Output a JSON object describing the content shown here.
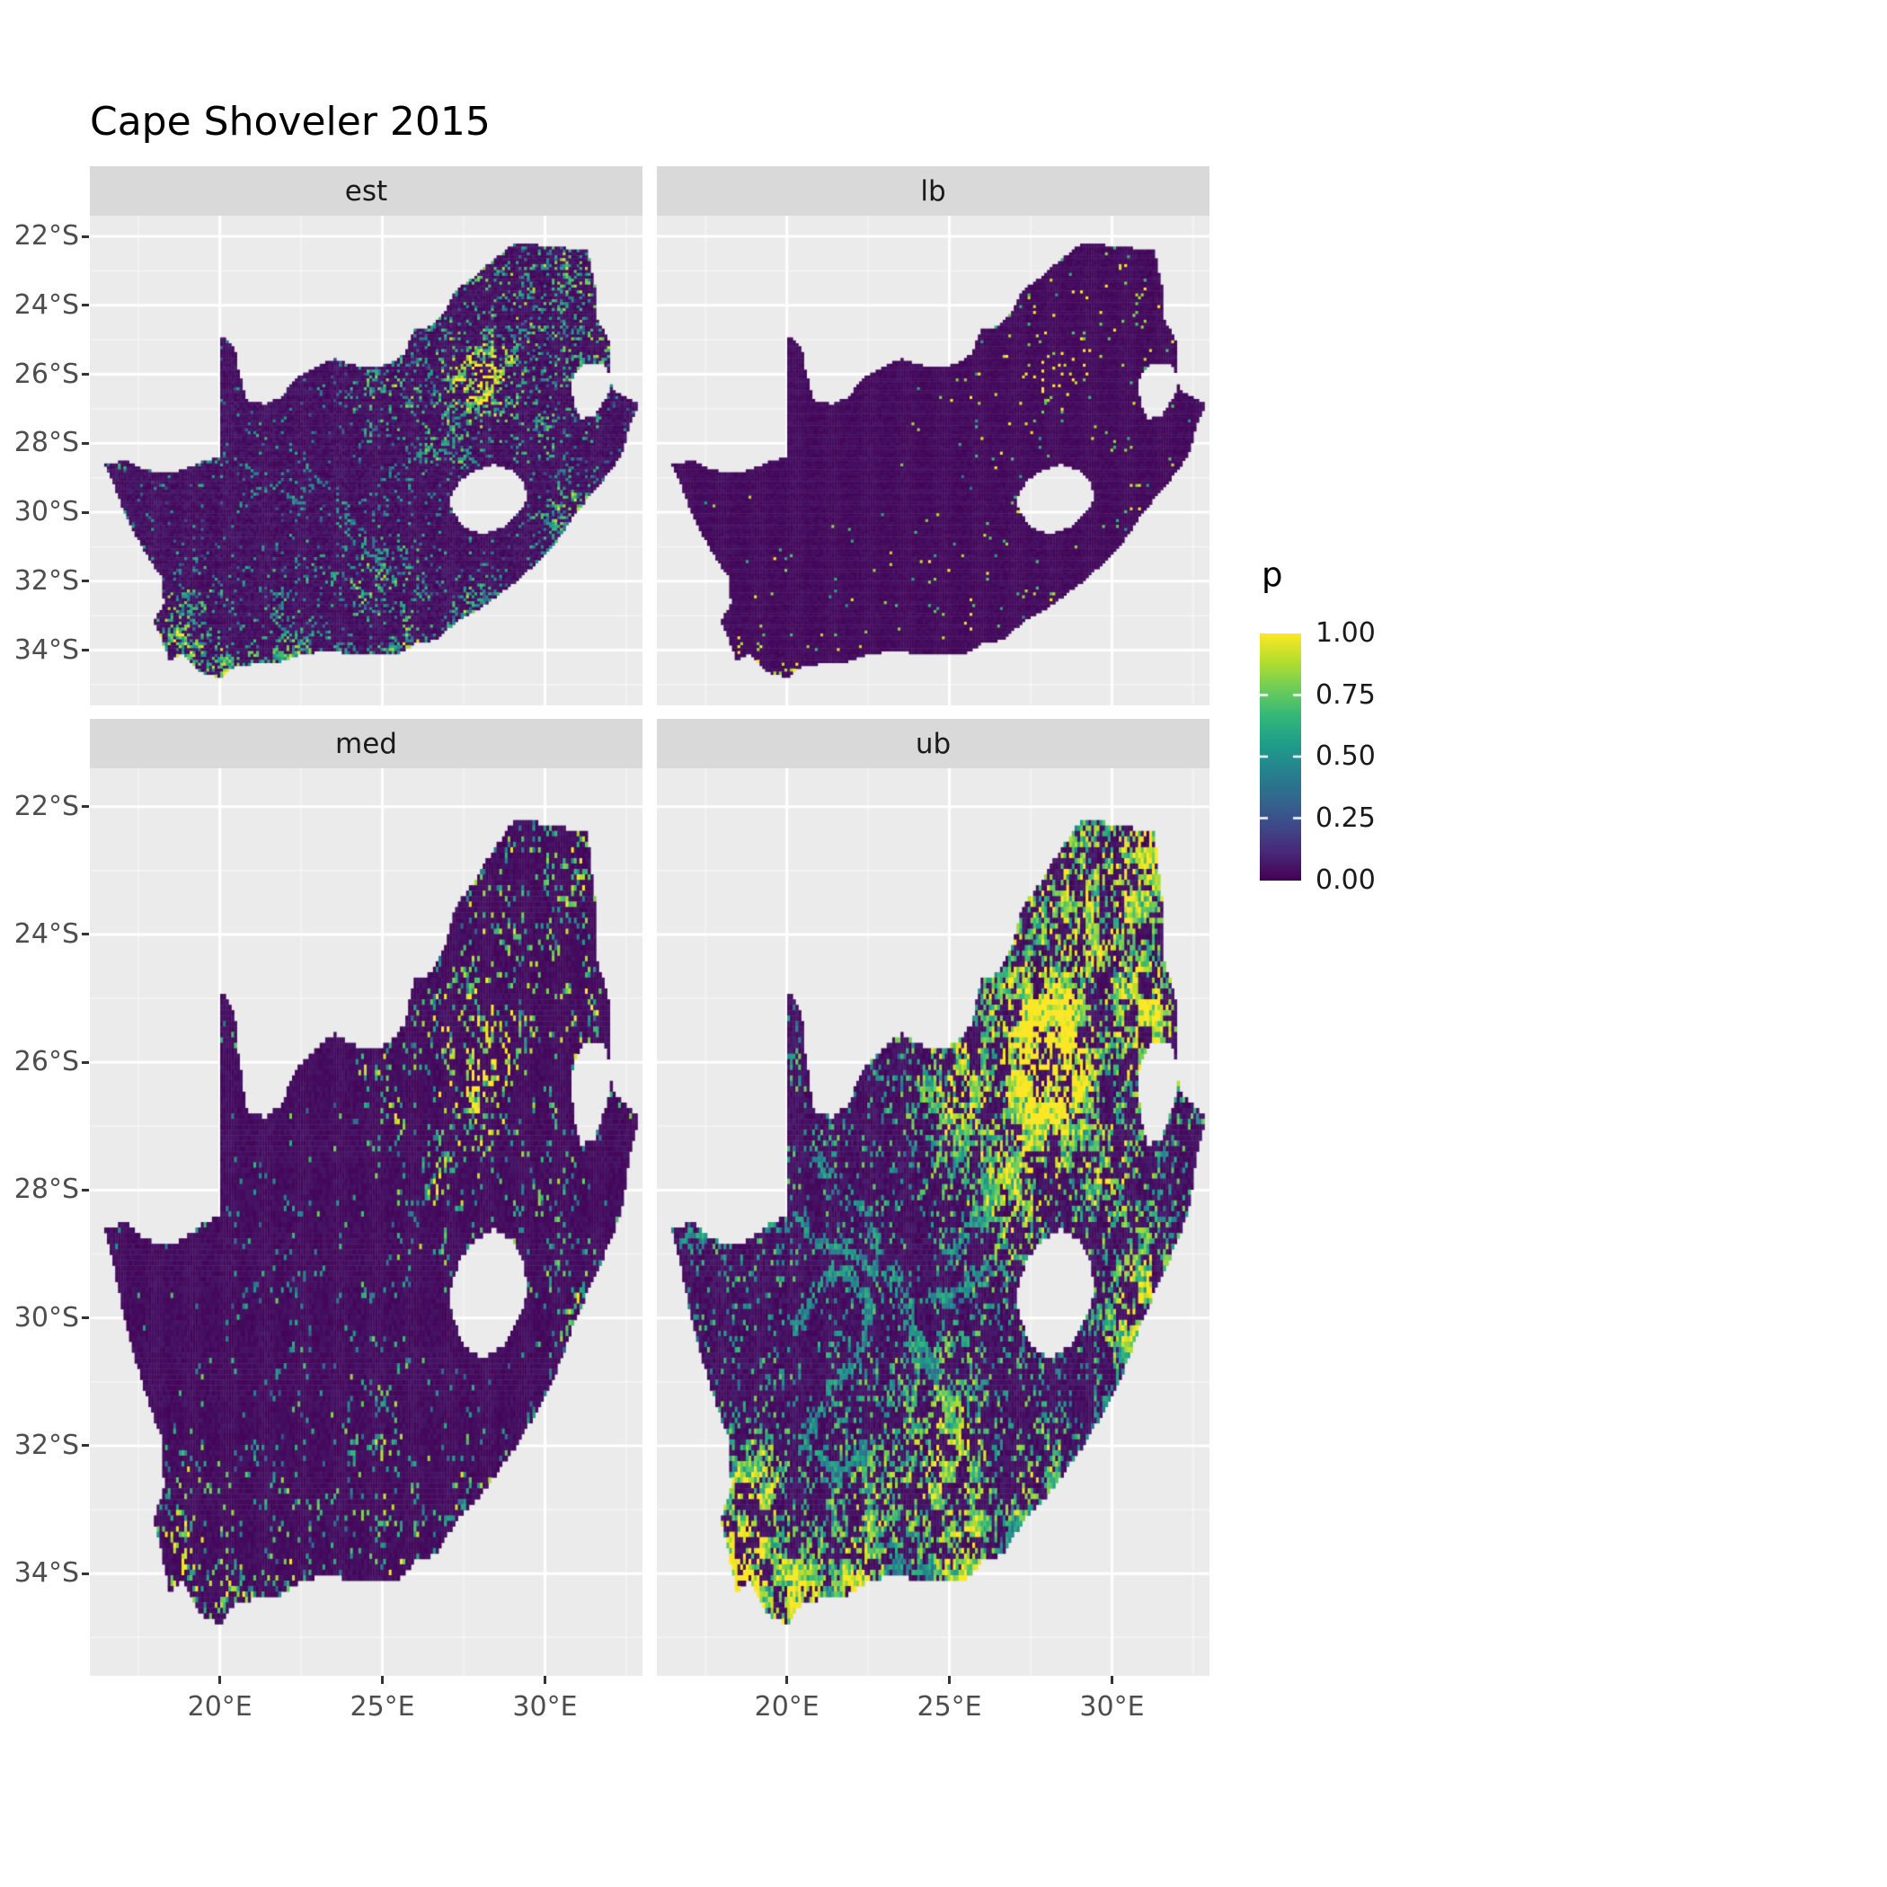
{
  "title": "Cape Shoveler 2015",
  "chart_data": {
    "type": "heatmap",
    "subtype": "faceted-raster-map",
    "region": "South Africa",
    "facets": [
      "est",
      "lb",
      "med",
      "ub"
    ],
    "x_axis": {
      "ticks": [
        20,
        25,
        30
      ],
      "labels": [
        "20°E",
        "25°E",
        "30°E"
      ],
      "range": [
        16.0,
        33.0
      ]
    },
    "y_axis": {
      "ticks": [
        -22,
        -24,
        -26,
        -28,
        -30,
        -32,
        -34
      ],
      "labels": [
        "22°S",
        "24°S",
        "26°S",
        "28°S",
        "30°S",
        "32°S",
        "34°S"
      ],
      "range": [
        -21.4,
        -35.6
      ]
    },
    "legend": {
      "title": "p",
      "tick_values": [
        1.0,
        0.75,
        0.5,
        0.25,
        0.0
      ],
      "tick_labels": [
        "1.00",
        "0.75",
        "0.50",
        "0.25",
        "0.00"
      ],
      "range": [
        0,
        1
      ]
    },
    "palette": {
      "name": "viridis",
      "stops": [
        [
          0,
          "#440154"
        ],
        [
          0.111,
          "#482878"
        ],
        [
          0.222,
          "#3E4A89"
        ],
        [
          0.333,
          "#31688E"
        ],
        [
          0.444,
          "#26828E"
        ],
        [
          0.556,
          "#1F9E89"
        ],
        [
          0.667,
          "#35B779"
        ],
        [
          0.778,
          "#6DCD59"
        ],
        [
          0.889,
          "#B4DE2C"
        ],
        [
          1,
          "#FDE725"
        ]
      ]
    },
    "colors": {
      "panel_bg": "#EBEBEB",
      "strip_bg": "#D9D9D9",
      "grid_major": "#FFFFFF",
      "axis_text": "#4D4D4D",
      "text": "#1A1A1A",
      "background": "#FFFFFF"
    },
    "cell_size_deg": 0.085,
    "map_outline": [
      [
        16.45,
        -28.6
      ],
      [
        17.1,
        -28.5
      ],
      [
        17.7,
        -28.77
      ],
      [
        18.4,
        -28.88
      ],
      [
        19.0,
        -28.72
      ],
      [
        19.55,
        -28.5
      ],
      [
        20.0,
        -28.4
      ],
      [
        20.0,
        -24.85
      ],
      [
        20.45,
        -25.2
      ],
      [
        20.55,
        -25.8
      ],
      [
        20.7,
        -26.35
      ],
      [
        20.85,
        -26.8
      ],
      [
        21.4,
        -26.85
      ],
      [
        21.9,
        -26.66
      ],
      [
        22.3,
        -26.15
      ],
      [
        22.9,
        -25.8
      ],
      [
        23.5,
        -25.55
      ],
      [
        24.2,
        -25.75
      ],
      [
        24.8,
        -25.82
      ],
      [
        25.4,
        -25.6
      ],
      [
        25.7,
        -25.4
      ],
      [
        25.95,
        -24.72
      ],
      [
        26.45,
        -24.62
      ],
      [
        26.9,
        -24.25
      ],
      [
        27.2,
        -23.6
      ],
      [
        27.8,
        -23.2
      ],
      [
        28.25,
        -22.8
      ],
      [
        29.0,
        -22.25
      ],
      [
        29.4,
        -22.18
      ],
      [
        30.1,
        -22.3
      ],
      [
        30.85,
        -22.35
      ],
      [
        31.3,
        -22.4
      ],
      [
        31.55,
        -23.5
      ],
      [
        31.55,
        -24.35
      ],
      [
        31.95,
        -24.95
      ],
      [
        32.02,
        -25.6
      ],
      [
        31.97,
        -26.1
      ],
      [
        32.13,
        -26.5
      ],
      [
        32.89,
        -26.85
      ],
      [
        32.58,
        -27.55
      ],
      [
        32.35,
        -28.35
      ],
      [
        31.85,
        -28.98
      ],
      [
        31.3,
        -29.6
      ],
      [
        30.8,
        -30.2
      ],
      [
        30.35,
        -30.85
      ],
      [
        29.85,
        -31.35
      ],
      [
        29.25,
        -31.9
      ],
      [
        28.55,
        -32.4
      ],
      [
        28.0,
        -32.8
      ],
      [
        27.35,
        -33.1
      ],
      [
        26.65,
        -33.7
      ],
      [
        26.0,
        -33.8
      ],
      [
        25.65,
        -34.05
      ],
      [
        25.0,
        -34.15
      ],
      [
        24.2,
        -34.15
      ],
      [
        23.4,
        -34.0
      ],
      [
        22.6,
        -34.1
      ],
      [
        21.8,
        -34.35
      ],
      [
        21.0,
        -34.4
      ],
      [
        20.4,
        -34.5
      ],
      [
        20.0,
        -34.8
      ],
      [
        19.4,
        -34.62
      ],
      [
        19.1,
        -34.35
      ],
      [
        18.8,
        -34.1
      ],
      [
        18.45,
        -34.32
      ],
      [
        18.32,
        -33.95
      ],
      [
        17.98,
        -33.18
      ],
      [
        18.28,
        -32.62
      ],
      [
        18.22,
        -31.9
      ],
      [
        17.65,
        -31.1
      ],
      [
        17.1,
        -30.1
      ],
      [
        16.8,
        -29.35
      ]
    ],
    "map_holes": {
      "lesotho": [
        [
          27.05,
          -29.6
        ],
        [
          27.4,
          -29.05
        ],
        [
          27.85,
          -28.78
        ],
        [
          28.45,
          -28.6
        ],
        [
          28.98,
          -28.78
        ],
        [
          29.35,
          -29.12
        ],
        [
          29.47,
          -29.58
        ],
        [
          29.17,
          -30.05
        ],
        [
          28.68,
          -30.45
        ],
        [
          28.05,
          -30.66
        ],
        [
          27.48,
          -30.4
        ],
        [
          27.15,
          -30.0
        ]
      ],
      "eswatini": [
        [
          30.8,
          -26.15
        ],
        [
          31.15,
          -25.73
        ],
        [
          31.85,
          -25.72
        ],
        [
          32.05,
          -26.12
        ],
        [
          31.93,
          -26.6
        ],
        [
          31.53,
          -27.2
        ],
        [
          31.08,
          -27.3
        ],
        [
          30.86,
          -26.8
        ]
      ]
    },
    "hotspots": [
      [
        28.1,
        -26.0,
        1.05,
        1.0
      ],
      [
        27.2,
        -25.2,
        0.8,
        0.6
      ],
      [
        29.3,
        -24.3,
        1.1,
        0.5
      ],
      [
        28.3,
        -23.2,
        1.0,
        0.45
      ],
      [
        30.8,
        -23.0,
        1.0,
        0.55
      ],
      [
        31.1,
        -25.3,
        0.9,
        0.6
      ],
      [
        26.9,
        -27.9,
        1.0,
        0.45
      ],
      [
        25.3,
        -26.4,
        0.9,
        0.45
      ],
      [
        18.7,
        -33.9,
        0.65,
        0.9
      ],
      [
        19.0,
        -32.8,
        0.7,
        0.5
      ],
      [
        20.3,
        -34.4,
        0.7,
        0.6
      ],
      [
        22.2,
        -34.1,
        0.65,
        0.55
      ],
      [
        25.5,
        -33.8,
        0.75,
        0.6
      ],
      [
        27.9,
        -32.9,
        0.75,
        0.5
      ],
      [
        30.9,
        -29.9,
        0.8,
        0.55
      ],
      [
        24.8,
        -32.2,
        1.1,
        0.45
      ],
      [
        29.9,
        -27.6,
        0.9,
        0.4
      ],
      [
        22.5,
        -33.0,
        0.9,
        0.35
      ]
    ],
    "filaments": {
      "orange_river": [
        [
          16.6,
          -28.55
        ],
        [
          17.8,
          -28.8
        ],
        [
          19.2,
          -28.55
        ],
        [
          20.3,
          -28.45
        ],
        [
          21.3,
          -28.85
        ],
        [
          22.3,
          -29.1
        ],
        [
          23.3,
          -29.55
        ],
        [
          24.3,
          -29.75
        ],
        [
          25.3,
          -29.6
        ],
        [
          26.1,
          -29.2
        ]
      ],
      "vaal_river": [
        [
          25.0,
          -29.1
        ],
        [
          25.9,
          -28.5
        ],
        [
          26.8,
          -27.8
        ],
        [
          27.6,
          -27.0
        ],
        [
          28.5,
          -26.8
        ]
      ],
      "karoo_web_1": [
        [
          20.2,
          -30.2
        ],
        [
          20.9,
          -29.6
        ],
        [
          21.8,
          -29.2
        ],
        [
          22.5,
          -29.8
        ],
        [
          22.2,
          -30.7
        ],
        [
          21.3,
          -31.1
        ],
        [
          20.6,
          -31.9
        ],
        [
          21.4,
          -32.4
        ],
        [
          22.4,
          -32.1
        ]
      ],
      "karoo_web_2": [
        [
          21.0,
          -27.6
        ],
        [
          21.8,
          -28.1
        ],
        [
          22.7,
          -28.6
        ],
        [
          23.3,
          -29.4
        ],
        [
          24.0,
          -30.2
        ],
        [
          24.6,
          -31.0
        ],
        [
          25.2,
          -31.8
        ]
      ],
      "south_coast": [
        [
          19.3,
          -34.45
        ],
        [
          20.6,
          -34.35
        ],
        [
          22.0,
          -34.2
        ],
        [
          23.5,
          -33.9
        ],
        [
          25.0,
          -34.0
        ],
        [
          26.3,
          -33.7
        ],
        [
          27.6,
          -33.0
        ],
        [
          29.0,
          -32.2
        ],
        [
          30.2,
          -31.0
        ],
        [
          31.0,
          -30.0
        ]
      ]
    },
    "facet_params": {
      "est": {
        "seed": 11,
        "base_p": 0.03,
        "f_mult": 0.55,
        "f_boost": 1.0,
        "v_base": 0.18,
        "v_r": 0.5,
        "v_f": 0.55,
        "dark_max": 0.07,
        "fil_p": 0.25
      },
      "lb": {
        "seed": 23,
        "base_p": 0.004,
        "f_mult": 0.06,
        "f_boost": 1.0,
        "v_base": 0.5,
        "v_r": 0.5,
        "v_f": 0.3,
        "dark_max": 0.04,
        "fil_p": 0.0
      },
      "med": {
        "seed": 37,
        "base_p": 0.012,
        "f_mult": 0.3,
        "f_boost": 1.0,
        "v_base": 0.25,
        "v_r": 0.55,
        "v_f": 0.5,
        "dark_max": 0.05,
        "fil_p": 0.1
      },
      "ub": {
        "seed": 51,
        "base_p": 0.12,
        "f_mult": 0.9,
        "f_boost": 1.35,
        "v_base": 0.35,
        "v_r": 0.45,
        "v_f": 0.6,
        "dark_max": 0.07,
        "fil_p": 0.7
      }
    },
    "facet_descriptions": {
      "est": "Point estimate: mostly p≈0 (dark purple) with a dense moderate-to-high cluster around Gauteng (26–29°E, 24–27°S), scattered teal speckles over the northeast and east, and high cells along the south and southwest coasts.",
      "lb": "Lower bound: almost entirely p≈0 with only sparse bright dots, mainly near Gauteng and a few near the southwest coast.",
      "med": "Median: mostly p≈0 with a moderate speckled cluster around Gauteng and sparse bright cells along the southern coast.",
      "ub": "Upper bound: extensive high values — a large solid yellow region around Gauteng and the northeast, yellow-green patches along the coasts, and teal filament/web patterns across the Karoo interior."
    }
  }
}
